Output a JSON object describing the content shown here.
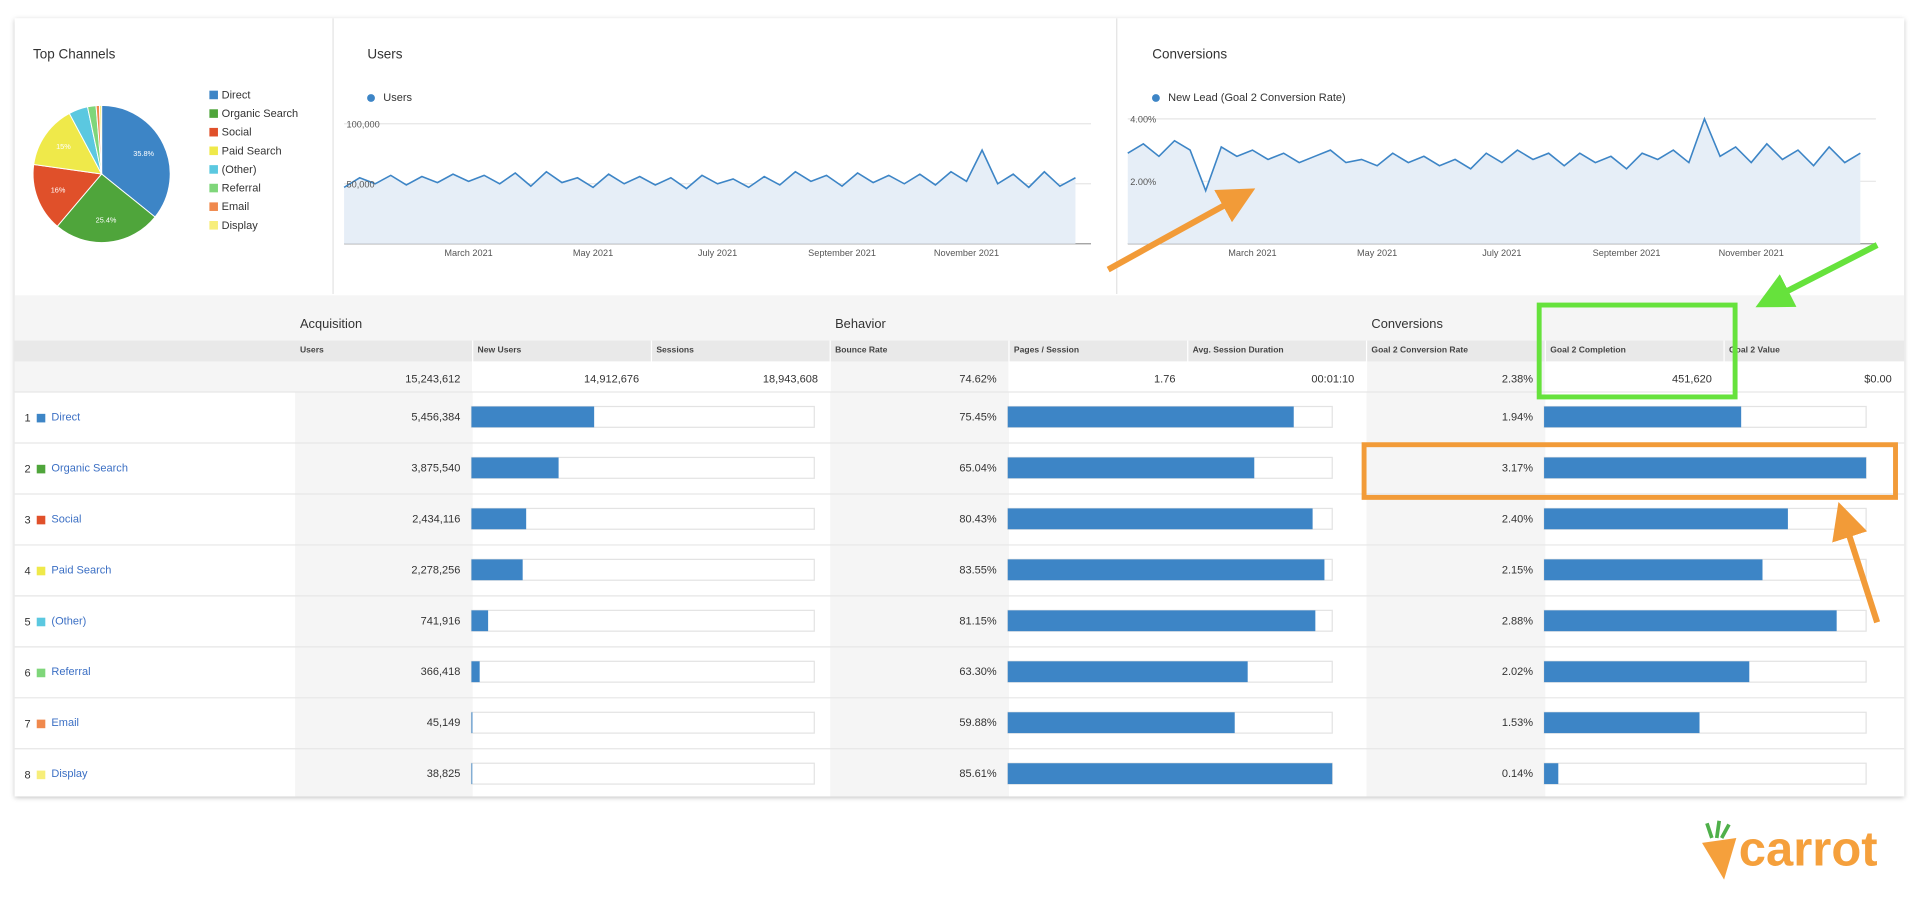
{
  "chart_data": [
    {
      "type": "pie",
      "title": "Top Channels",
      "categories": [
        "Direct",
        "Organic Search",
        "Social",
        "Paid Search",
        "(Other)",
        "Referral",
        "Email",
        "Display"
      ],
      "values": [
        35.8,
        25.4,
        16,
        15,
        4.5,
        2,
        0.8,
        0.5
      ],
      "value_labels": [
        "35.8%",
        "25.4%",
        "16%",
        "15%",
        null,
        null,
        null,
        null
      ],
      "colors": [
        "#3d85c6",
        "#4fa53b",
        "#e0502a",
        "#efe94a",
        "#5bc8e0",
        "#7fd67a",
        "#f0894d",
        "#f7ee7a"
      ]
    },
    {
      "type": "line",
      "title": "Users",
      "x": [
        0,
        0.25,
        0.5,
        0.75,
        1,
        1.25,
        1.5,
        1.75,
        2,
        2.25,
        2.5,
        2.75,
        3,
        3.25,
        3.5,
        3.75,
        4,
        4.25,
        4.5,
        4.75,
        5,
        5.25,
        5.5,
        5.75,
        6,
        6.25,
        6.5,
        6.75,
        7,
        7.25,
        7.5,
        7.75,
        8,
        8.25,
        8.5,
        8.75,
        9,
        9.25,
        9.5,
        9.75,
        10,
        10.25,
        10.5,
        10.75,
        11,
        11.25,
        11.5,
        11.75
      ],
      "series": [
        {
          "name": "Users",
          "color": "#3d85c6",
          "values": [
            47000,
            55000,
            50000,
            57000,
            49000,
            56000,
            51000,
            58000,
            52000,
            57000,
            50000,
            59000,
            48000,
            60000,
            51000,
            55000,
            47000,
            58000,
            50000,
            56000,
            49000,
            55000,
            46000,
            57000,
            50000,
            54000,
            47000,
            56000,
            49000,
            60000,
            52000,
            57000,
            48000,
            59000,
            51000,
            57000,
            50000,
            58000,
            49000,
            60000,
            52000,
            78000,
            50000,
            58000,
            47000,
            60000,
            48000,
            55000
          ]
        }
      ],
      "xlim": [
        0,
        12
      ],
      "xticks": [
        {
          "value": 2,
          "label": "March 2021"
        },
        {
          "value": 4,
          "label": "May 2021"
        },
        {
          "value": 6,
          "label": "July 2021"
        },
        {
          "value": 8,
          "label": "September 2021"
        },
        {
          "value": 10,
          "label": "November 2021"
        }
      ],
      "ylim": [
        0,
        100000
      ],
      "yticks": [
        {
          "value": 50000,
          "label": "50,000"
        },
        {
          "value": 100000,
          "label": "100,000"
        }
      ],
      "grid": true
    },
    {
      "type": "line",
      "title": "Conversions",
      "x": [
        0,
        0.25,
        0.5,
        0.75,
        1,
        1.25,
        1.5,
        1.75,
        2,
        2.25,
        2.5,
        2.75,
        3,
        3.25,
        3.5,
        3.75,
        4,
        4.25,
        4.5,
        4.75,
        5,
        5.25,
        5.5,
        5.75,
        6,
        6.25,
        6.5,
        6.75,
        7,
        7.25,
        7.5,
        7.75,
        8,
        8.25,
        8.5,
        8.75,
        9,
        9.25,
        9.5,
        9.75,
        10,
        10.25,
        10.5,
        10.75,
        11,
        11.25,
        11.5,
        11.75
      ],
      "series": [
        {
          "name": "New Lead (Goal 2 Conversion Rate)",
          "color": "#3d85c6",
          "values": [
            2.9,
            3.2,
            2.8,
            3.3,
            3.0,
            1.7,
            3.1,
            2.8,
            3.0,
            2.7,
            2.9,
            2.6,
            2.8,
            3.0,
            2.6,
            2.7,
            2.5,
            2.9,
            2.6,
            2.8,
            2.5,
            2.7,
            2.4,
            2.9,
            2.6,
            3.0,
            2.7,
            2.9,
            2.5,
            2.9,
            2.6,
            2.8,
            2.4,
            2.9,
            2.7,
            3.0,
            2.6,
            4.0,
            2.8,
            3.1,
            2.6,
            3.2,
            2.7,
            3.0,
            2.5,
            3.1,
            2.6,
            2.9
          ]
        }
      ],
      "xlim": [
        0,
        12
      ],
      "xticks": [
        {
          "value": 2,
          "label": "March 2021"
        },
        {
          "value": 4,
          "label": "May 2021"
        },
        {
          "value": 6,
          "label": "July 2021"
        },
        {
          "value": 8,
          "label": "September 2021"
        },
        {
          "value": 10,
          "label": "November 2021"
        }
      ],
      "ylim": [
        0,
        4
      ],
      "yticks": [
        {
          "value": 2,
          "label": "2.00%"
        },
        {
          "value": 4,
          "label": "4.00%"
        }
      ],
      "grid": true
    }
  ],
  "table": {
    "groups": [
      "Acquisition",
      "Behavior",
      "Conversions"
    ],
    "headers": [
      "Users",
      "New Users",
      "Sessions",
      "Bounce Rate",
      "Pages / Session",
      "Avg. Session Duration",
      "Goal 2 Conversion Rate",
      "Goal 2 Completion",
      "Goal 2 Value"
    ],
    "totals": [
      {
        "value": 15243612,
        "label": "15,243,612"
      },
      "14,912,676",
      "18,943,608",
      "74.62%",
      "1.76",
      "00:01:10",
      "2.38%",
      "451,620",
      "$0.00"
    ],
    "rows": [
      {
        "rank": 1,
        "name": "Direct",
        "color": "#3d85c6"
      },
      {
        "rank": 2,
        "name": "Organic Search",
        "color": "#4fa53b"
      },
      {
        "rank": 3,
        "name": "Social",
        "color": "#e0502a"
      },
      {
        "rank": 4,
        "name": "Paid Search",
        "color": "#efe94a"
      },
      {
        "rank": 5,
        "name": "(Other)",
        "color": "#5bc8e0"
      },
      {
        "rank": 6,
        "name": "Referral",
        "color": "#7fd67a"
      },
      {
        "rank": 7,
        "name": "Email",
        "color": "#f0894d"
      },
      {
        "rank": 8,
        "name": "Display",
        "color": "#f7ee7a"
      }
    ],
    "users": {
      "values": [
        5456384,
        3875540,
        2434116,
        2278256,
        741916,
        366418,
        45149,
        38825
      ],
      "value_labels": [
        "5,456,384",
        "3,875,540",
        "2,434,116",
        "2,278,256",
        "741,916",
        "366,418",
        "45,149",
        "38,825"
      ]
    },
    "bounce_rate": {
      "values": [
        75.45,
        65.04,
        80.43,
        83.55,
        81.15,
        63.3,
        59.88,
        85.61
      ],
      "value_labels": [
        "75.45%",
        "65.04%",
        "80.43%",
        "83.55%",
        "81.15%",
        "63.30%",
        "59.88%",
        "85.61%"
      ]
    },
    "conversion_rate": {
      "values": [
        1.94,
        3.17,
        2.4,
        2.15,
        2.88,
        2.02,
        1.53,
        0.14
      ],
      "value_labels": [
        "1.94%",
        "3.17%",
        "2.40%",
        "2.15%",
        "2.88%",
        "2.02%",
        "1.53%",
        "0.14%"
      ]
    },
    "bar_color": "#3d85c6"
  },
  "brand": "carrot"
}
